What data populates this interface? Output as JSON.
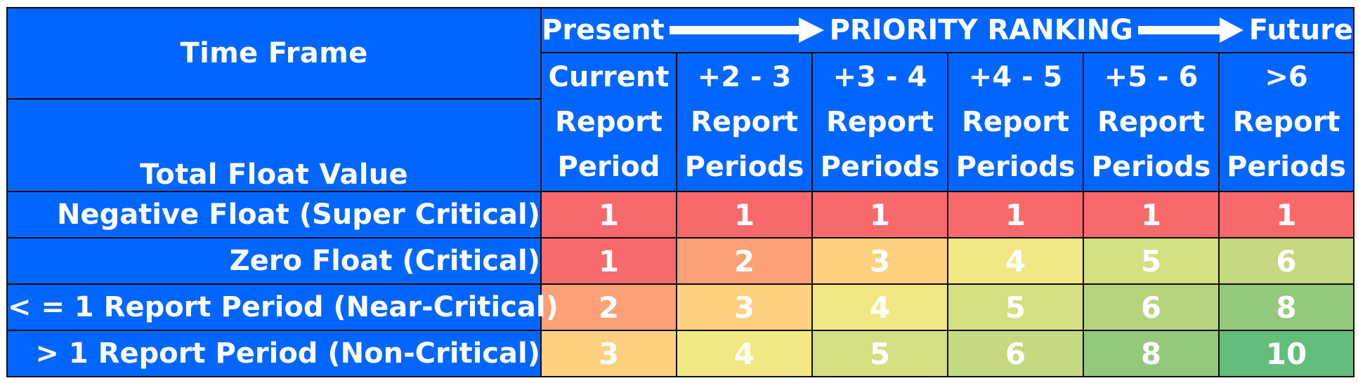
{
  "header": {
    "time_frame": "Time Frame",
    "total_float": "Total Float Value",
    "present": "Present",
    "priority": "PRIORITY RANKING",
    "future": "Future"
  },
  "columns": [
    [
      "Current",
      "Report",
      "Period"
    ],
    [
      "+2 - 3",
      "Report",
      "Periods"
    ],
    [
      "+3 - 4",
      "Report",
      "Periods"
    ],
    [
      "+4 - 5",
      "Report",
      "Periods"
    ],
    [
      "+5 - 6",
      "Report",
      "Periods"
    ],
    [
      ">6",
      "Report",
      "Periods"
    ]
  ],
  "rows": [
    {
      "label": "Negative Float (Super Critical)",
      "values": [
        "1",
        "1",
        "1",
        "1",
        "1",
        "1"
      ]
    },
    {
      "label": "Zero Float (Critical)",
      "values": [
        "1",
        "2",
        "3",
        "4",
        "5",
        "6"
      ]
    },
    {
      "label": "< = 1 Report Period (Near-Critical)",
      "values": [
        "2",
        "3",
        "4",
        "5",
        "6",
        "8"
      ]
    },
    {
      "label": "> 1 Report Period (Non-Critical)",
      "values": [
        "3",
        "4",
        "5",
        "6",
        "8",
        "10"
      ]
    }
  ],
  "colors": {
    "header_bg": "#0066ff",
    "cell_colors": [
      [
        "#f8696b",
        "#f8696b",
        "#f8696b",
        "#f8696b",
        "#f8696b",
        "#f8696b"
      ],
      [
        "#f8696b",
        "#fba077",
        "#fdd17f",
        "#f2e883",
        "#d5de80",
        "#c4d980"
      ],
      [
        "#fba077",
        "#fdd17f",
        "#f2e883",
        "#d5de80",
        "#b5d47e",
        "#92c97b"
      ],
      [
        "#fdd17f",
        "#f2e883",
        "#d5de80",
        "#c4d980",
        "#92c97b",
        "#63be7b"
      ]
    ]
  }
}
